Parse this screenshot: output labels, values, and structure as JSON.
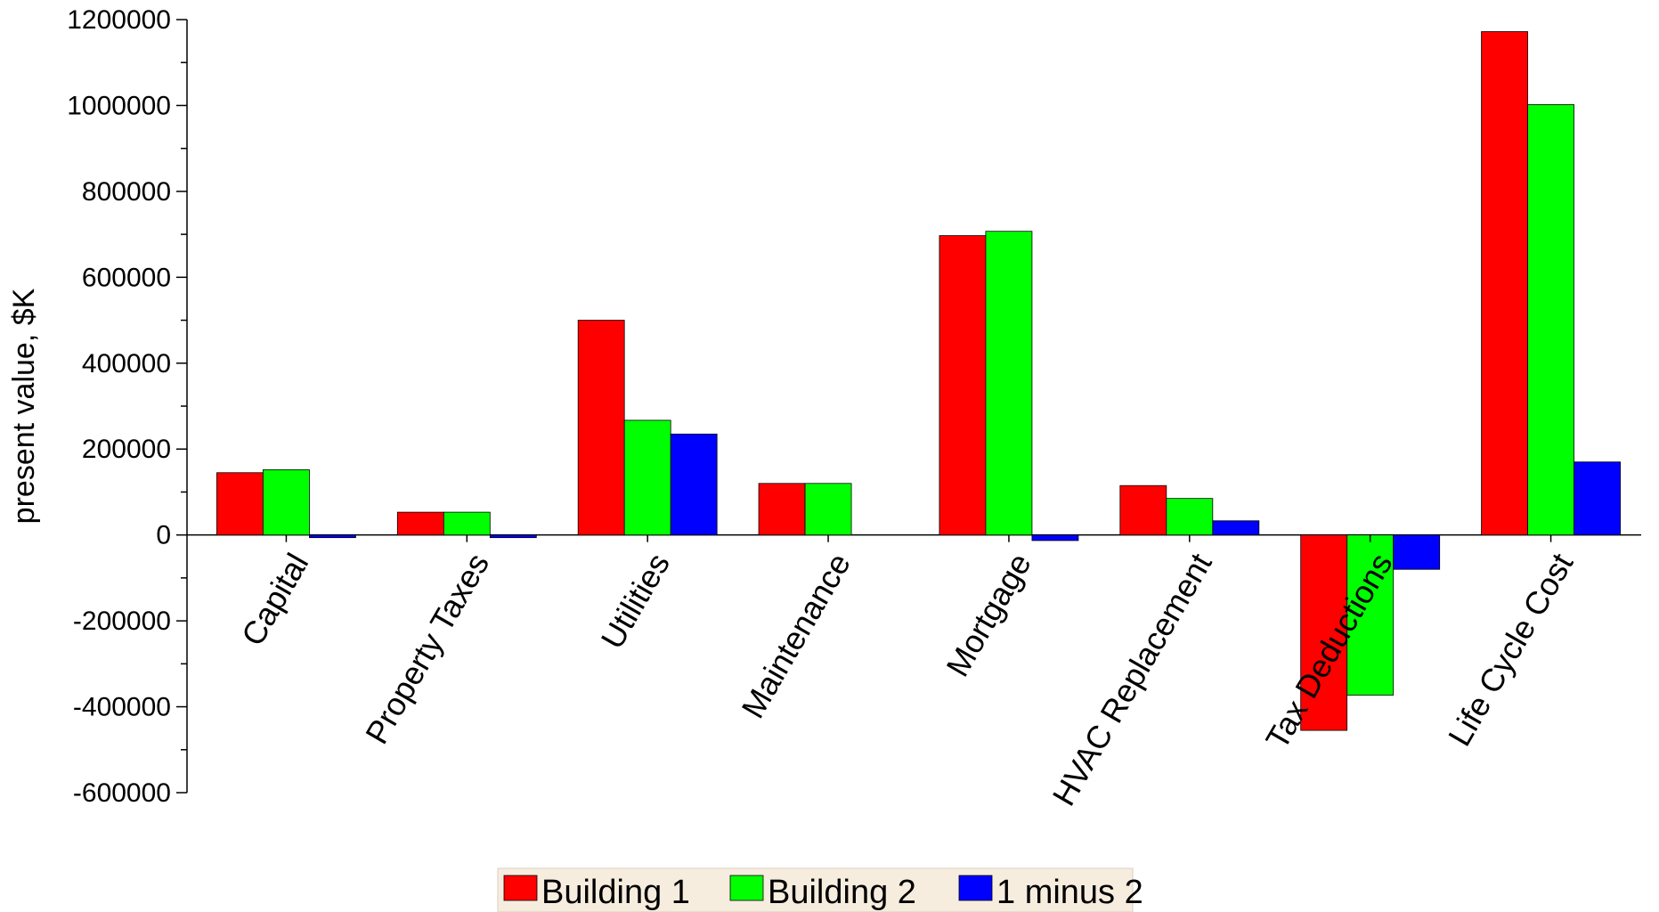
{
  "chart_data": {
    "type": "bar",
    "title": "",
    "xlabel": "",
    "ylabel": "present value, $K",
    "ylim": [
      -600000,
      1200000
    ],
    "yticks": [
      1200000,
      1000000,
      800000,
      600000,
      400000,
      200000,
      0,
      -200000,
      -400000,
      -600000
    ],
    "ytick_labels": [
      "1200000",
      "1000000",
      "800000",
      "600000",
      "400000",
      "200000",
      "0",
      "-200000",
      "-400000",
      "-600000"
    ],
    "categories": [
      "Capital",
      "Property Taxes",
      "Utilities",
      "Maintenance",
      "Mortgage",
      "HVAC Replacement",
      "Tax Deductions",
      "Life Cycle Cost"
    ],
    "series": [
      {
        "name": "Building 1",
        "color": "#ff0000",
        "values": [
          145000,
          53000,
          500000,
          120000,
          697000,
          115000,
          -455000,
          1172000
        ]
      },
      {
        "name": "Building 2",
        "color": "#00ff00",
        "values": [
          152000,
          53000,
          267000,
          120000,
          707000,
          85000,
          -373000,
          1002000
        ]
      },
      {
        "name": "1 minus 2",
        "color": "#0000ff",
        "values": [
          -5000,
          -4000,
          235000,
          0,
          -13000,
          33000,
          -80000,
          170000
        ]
      }
    ],
    "grid": false,
    "legend": {
      "placement": "bottom-center"
    }
  }
}
